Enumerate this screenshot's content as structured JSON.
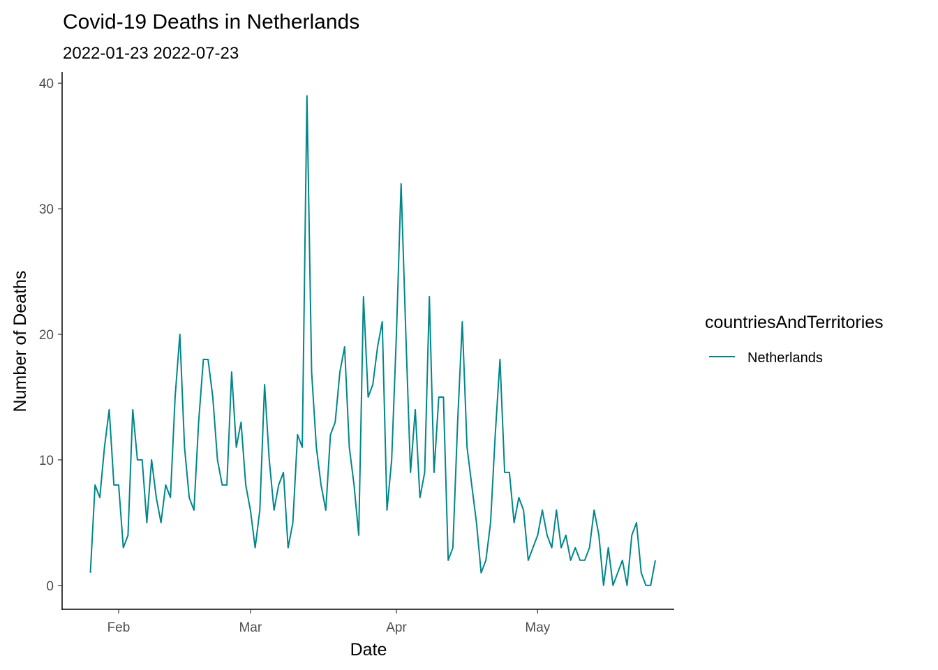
{
  "chart_data": {
    "type": "line",
    "title": "Covid-19 Deaths in Netherlands",
    "subtitle": "2022-01-23 2022-07-23",
    "xlabel": "Date",
    "ylabel": "Number of Deaths",
    "x_ticks": [
      {
        "date": "2022-02-01",
        "label": "Feb"
      },
      {
        "date": "2022-03-01",
        "label": "Mar"
      },
      {
        "date": "2022-04-01",
        "label": "Apr"
      },
      {
        "date": "2022-05-01",
        "label": "May"
      }
    ],
    "y_ticks": [
      0,
      10,
      20,
      30,
      40
    ],
    "xlim": [
      "2022-01-20",
      "2022-05-30"
    ],
    "ylim": [
      -1.9,
      40.9
    ],
    "grid": false,
    "legend": {
      "title": "countriesAndTerritories",
      "placement": "right"
    },
    "series": [
      {
        "name": "Netherlands",
        "color": "#00868b",
        "start_date": "2022-01-26",
        "values": [
          1,
          8,
          7,
          11,
          14,
          8,
          8,
          3,
          4,
          14,
          10,
          10,
          5,
          10,
          7,
          5,
          8,
          7,
          15,
          20,
          11,
          7,
          6,
          13,
          18,
          18,
          15,
          10,
          8,
          8,
          17,
          11,
          13,
          8,
          6,
          3,
          6,
          16,
          10,
          6,
          8,
          9,
          3,
          5,
          12,
          11,
          39,
          17,
          11,
          8,
          6,
          12,
          13,
          17,
          19,
          11,
          8,
          4,
          23,
          15,
          16,
          19,
          21,
          6,
          10,
          20,
          32,
          20,
          9,
          14,
          7,
          9,
          23,
          9,
          15,
          15,
          2,
          3,
          13,
          21,
          11,
          8,
          5,
          1,
          2,
          5,
          12,
          18,
          9,
          9,
          5,
          7,
          6,
          2,
          3,
          4,
          6,
          4,
          3,
          6,
          3,
          4,
          2,
          3,
          2,
          2,
          3,
          6,
          4,
          0,
          3,
          0,
          1,
          2,
          0,
          4,
          5,
          1,
          0,
          0,
          2
        ]
      }
    ]
  }
}
